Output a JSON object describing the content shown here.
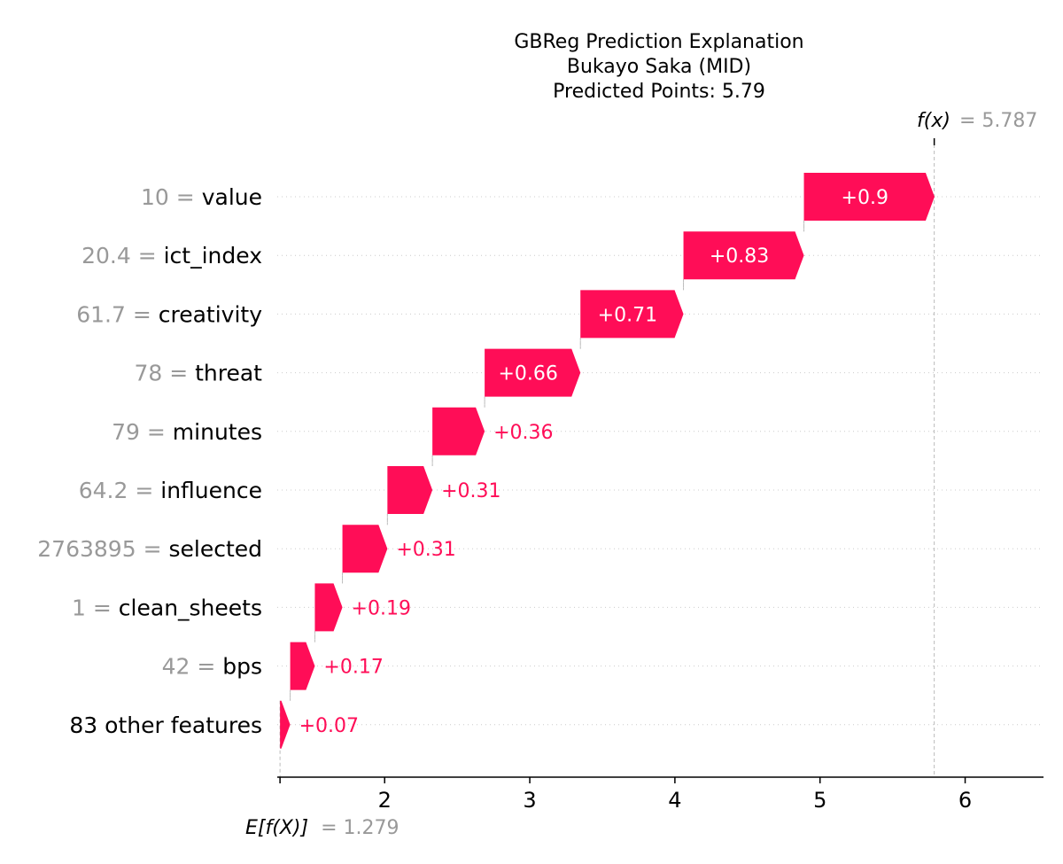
{
  "chart_data": {
    "type": "waterfall",
    "title_lines": [
      "GBReg Prediction Explanation",
      "Bukayo Saka (MID)",
      "Predicted Points: 5.79"
    ],
    "base_value": 1.279,
    "base_label": "E[f(X)]",
    "base_value_text": "= 1.279",
    "output_value": 5.787,
    "output_label": "f(x)",
    "output_value_text": "= 5.787",
    "x_ticks": [
      2,
      3,
      4,
      5,
      6
    ],
    "x_tick_labels": [
      "2",
      "3",
      "4",
      "5",
      "6"
    ],
    "xlim": [
      1.26,
      6.54
    ],
    "positive_color": "#ff0d57",
    "features": [
      {
        "value": "10",
        "eq": "=",
        "name": "value",
        "contribution": 0.9,
        "label": "+0.9"
      },
      {
        "value": "20.4",
        "eq": "=",
        "name": "ict_index",
        "contribution": 0.83,
        "label": "+0.83"
      },
      {
        "value": "61.7",
        "eq": "=",
        "name": "creativity",
        "contribution": 0.71,
        "label": "+0.71"
      },
      {
        "value": "78",
        "eq": "=",
        "name": "threat",
        "contribution": 0.66,
        "label": "+0.66"
      },
      {
        "value": "79",
        "eq": "=",
        "name": "minutes",
        "contribution": 0.36,
        "label": "+0.36"
      },
      {
        "value": "64.2",
        "eq": "=",
        "name": "influence",
        "contribution": 0.31,
        "label": "+0.31"
      },
      {
        "value": "2763895",
        "eq": "=",
        "name": "selected",
        "contribution": 0.31,
        "label": "+0.31"
      },
      {
        "value": "1",
        "eq": "=",
        "name": "clean_sheets",
        "contribution": 0.19,
        "label": "+0.19"
      },
      {
        "value": "42",
        "eq": "=",
        "name": "bps",
        "contribution": 0.17,
        "label": "+0.17"
      },
      {
        "value": "",
        "eq": "",
        "name": "83 other features",
        "contribution": 0.07,
        "label": "+0.07"
      }
    ]
  }
}
